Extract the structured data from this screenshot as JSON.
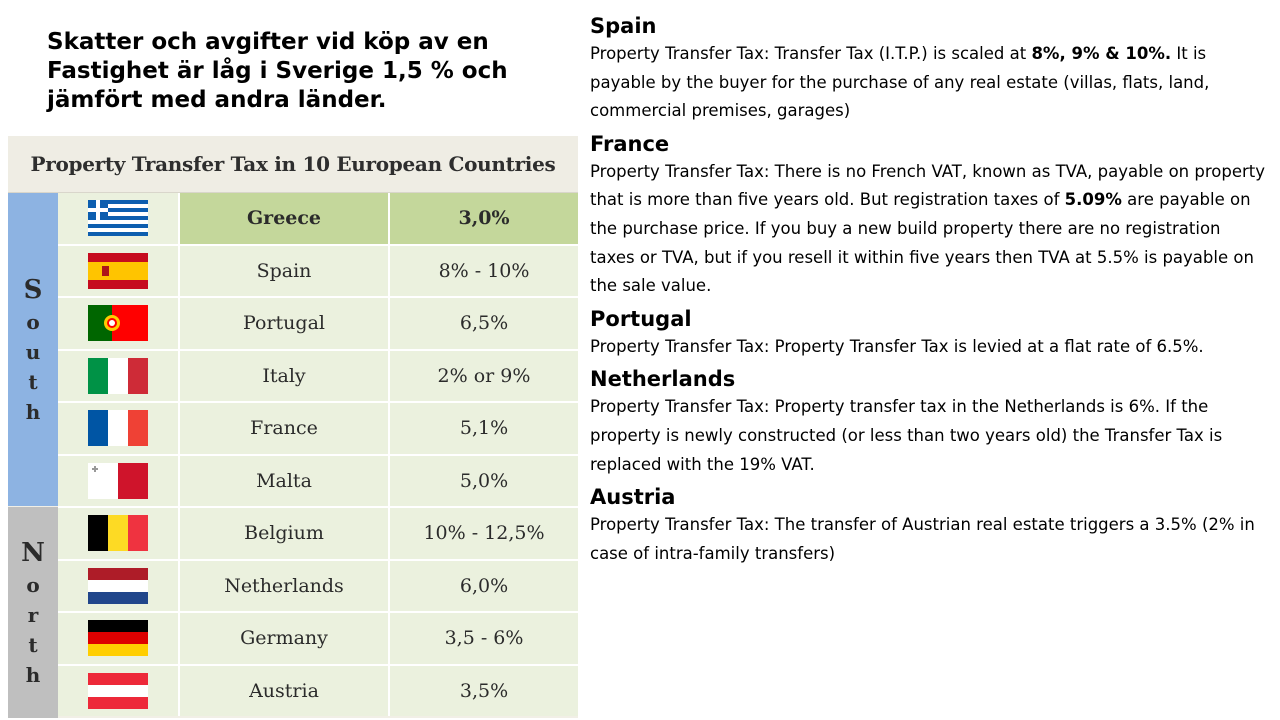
{
  "headline": "Skatter och avgifter vid köp av en Fastighet är låg i Sverige 1,5 % och jämfört med andra länder.",
  "table": {
    "title": "Property Transfer Tax in 10 European Countries",
    "regions": [
      {
        "name": "South",
        "letters": [
          "S",
          "o",
          "u",
          "t",
          "h"
        ],
        "color": "#8db3e2"
      },
      {
        "name": "North",
        "letters": [
          "N",
          "o",
          "r",
          "t",
          "h"
        ],
        "color": "#bfbfbf"
      }
    ],
    "rows": [
      {
        "country": "Greece",
        "rate": "3,0%",
        "flag": "greece-flag-icon"
      },
      {
        "country": "Spain",
        "rate": "8% - 10%",
        "flag": "spain-flag-icon"
      },
      {
        "country": "Portugal",
        "rate": "6,5%",
        "flag": "portugal-flag-icon"
      },
      {
        "country": "Italy",
        "rate": "2%  or 9%",
        "flag": "italy-flag-icon"
      },
      {
        "country": "France",
        "rate": "5,1%",
        "flag": "france-flag-icon"
      },
      {
        "country": "Malta",
        "rate": "5,0%",
        "flag": "malta-flag-icon"
      },
      {
        "country": "Belgium",
        "rate": "10% - 12,5%",
        "flag": "belgium-flag-icon"
      },
      {
        "country": "Netherlands",
        "rate": "6,0%",
        "flag": "netherlands-flag-icon"
      },
      {
        "country": "Germany",
        "rate": "3,5 - 6%",
        "flag": "germany-flag-icon"
      },
      {
        "country": "Austria",
        "rate": "3,5%",
        "flag": "austria-flag-icon"
      }
    ]
  },
  "sections": {
    "spain": {
      "heading": "Spain",
      "p1": "Property Transfer Tax: Transfer Tax (I.T.P.) is scaled at ",
      "b1": "8%, 9% & 10%.",
      "p2": " It is payable by the buyer for the purchase of any real estate (villas, flats, land, commercial premises, garages)"
    },
    "france": {
      "heading": "France",
      "p1": "Property Transfer Tax: There is no French VAT, known as TVA, payable on property that is more than five years old. But registration taxes of ",
      "b1": "5.09%",
      "p2": " are payable on the purchase price. If you buy a new build property there are no registration taxes or TVA, but if you resell it within five years then TVA at 5.5% is payable on the sale value."
    },
    "portugal": {
      "heading": "Portugal",
      "text": "Property Transfer Tax: Property Transfer Tax is levied at a flat rate of 6.5%."
    },
    "netherlands": {
      "heading": "Netherlands",
      "text": "Property Transfer Tax:  Property transfer tax in the Netherlands is 6%. If the property is newly constructed (or less than two years old) the Transfer Tax is replaced with the 19% VAT."
    },
    "austria": {
      "heading": "Austria",
      "text": "Property Transfer Tax: The transfer of Austrian real estate triggers a 3.5% (2% in case of intra-family transfers)"
    }
  }
}
